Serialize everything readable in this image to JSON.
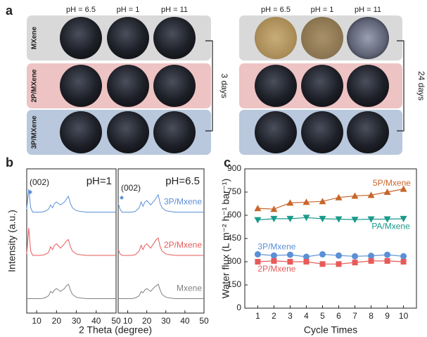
{
  "panel_a": {
    "label": "a",
    "rows": [
      "MXene",
      "2P/MXene",
      "3P/MXene"
    ],
    "groups": [
      {
        "columns": [
          "pH = 6.5",
          "pH = 1",
          "pH = 11"
        ],
        "time": "3 days"
      },
      {
        "columns": [
          "pH = 6.5",
          "pH = 1",
          "pH = 11"
        ],
        "time": "24 days"
      }
    ]
  },
  "chart_data": [
    {
      "type": "line",
      "panel": "b",
      "title": "pH=1",
      "annotation": "(002)",
      "xlabel": "2 Theta (degree)",
      "ylabel": "Intensity (a.u.)",
      "x": [
        5,
        6,
        7,
        8,
        10,
        12,
        14,
        16,
        17,
        18,
        19,
        20,
        22,
        24,
        25,
        26,
        27,
        28,
        30,
        32,
        35,
        40,
        45,
        50
      ],
      "xlim": [
        5,
        50
      ],
      "xticks": [
        10,
        20,
        30,
        40,
        50
      ],
      "ylim": [
        0,
        10
      ],
      "series": [
        {
          "color": "#5b8fd6",
          "values": [
            7.2,
            8.6,
            7.3,
            7.0,
            7.0,
            7.0,
            7.05,
            7.2,
            7.5,
            7.3,
            7.6,
            7.7,
            7.5,
            7.7,
            7.9,
            8.1,
            7.6,
            7.3,
            7.1,
            7.05,
            7.0,
            7.0,
            7.0,
            7.0
          ]
        },
        {
          "color": "#e85a5a",
          "values": [
            4.1,
            5.9,
            4.3,
            4.0,
            4.0,
            4.0,
            4.05,
            4.2,
            4.6,
            4.4,
            4.7,
            4.8,
            4.5,
            4.8,
            5.0,
            5.1,
            4.6,
            4.3,
            4.1,
            4.05,
            4.0,
            4.0,
            4.0,
            4.0
          ]
        },
        {
          "color": "#808080",
          "values": [
            1.0,
            1.0,
            1.0,
            1.0,
            1.0,
            1.0,
            1.05,
            1.2,
            1.5,
            1.4,
            1.6,
            1.7,
            1.5,
            1.7,
            1.9,
            2.0,
            1.6,
            1.3,
            1.1,
            1.05,
            1.0,
            1.0,
            1.0,
            1.0
          ]
        }
      ]
    },
    {
      "type": "line",
      "panel": "b",
      "title": "pH=6.5",
      "annotation": "(002)",
      "x": [
        5,
        6,
        7,
        8,
        10,
        12,
        14,
        16,
        17,
        18,
        19,
        20,
        22,
        24,
        25,
        26,
        27,
        28,
        30,
        32,
        35,
        40,
        45,
        50
      ],
      "xlim": [
        5,
        50
      ],
      "xticks": [
        10,
        20,
        30,
        40,
        50
      ],
      "ylim": [
        0,
        10
      ],
      "series": [
        {
          "name": "3P/Mxene",
          "color": "#5b8fd6",
          "values": [
            7.6,
            7.2,
            7.0,
            7.0,
            7.0,
            7.0,
            7.05,
            7.3,
            7.7,
            7.4,
            7.7,
            7.8,
            7.5,
            7.8,
            8.0,
            8.2,
            7.6,
            7.3,
            7.1,
            7.05,
            7.0,
            7.0,
            7.0,
            7.0
          ]
        },
        {
          "name": "2P/Mxene",
          "color": "#e85a5a",
          "values": [
            4.4,
            4.1,
            4.0,
            4.0,
            4.0,
            4.0,
            4.05,
            4.3,
            4.7,
            4.4,
            4.7,
            4.8,
            4.5,
            4.9,
            5.1,
            5.2,
            4.6,
            4.3,
            4.1,
            4.05,
            4.0,
            4.0,
            4.0,
            4.0
          ]
        },
        {
          "name": "Mxene",
          "color": "#808080",
          "values": [
            1.0,
            1.0,
            1.0,
            1.0,
            1.0,
            1.0,
            1.05,
            1.2,
            1.5,
            1.4,
            1.6,
            1.7,
            1.5,
            1.8,
            1.9,
            2.0,
            1.6,
            1.3,
            1.1,
            1.05,
            1.0,
            1.0,
            1.0,
            1.0
          ]
        }
      ]
    },
    {
      "type": "line",
      "panel": "c",
      "xlabel": "Cycle Times",
      "ylabel": "Water flux (L m⁻² h⁻¹ bar⁻¹)",
      "x": [
        1,
        2,
        3,
        4,
        5,
        6,
        7,
        8,
        9,
        10
      ],
      "xlim": [
        0.2,
        10.8
      ],
      "xticks": [
        1,
        2,
        3,
        4,
        5,
        6,
        7,
        8,
        9,
        10
      ],
      "ylim": [
        0,
        900
      ],
      "yticks": [
        0,
        150,
        300,
        450,
        600,
        750,
        900
      ],
      "series": [
        {
          "name": "5P/Mxene",
          "color": "#c8662a",
          "marker": "triangle-up",
          "values": [
            645,
            640,
            680,
            685,
            690,
            715,
            725,
            730,
            750,
            770
          ]
        },
        {
          "name": "PA/Mxene",
          "color": "#1a9a8a",
          "marker": "triangle-down",
          "values": [
            570,
            578,
            578,
            585,
            578,
            575,
            572,
            575,
            575,
            578
          ]
        },
        {
          "name": "3P/Mxene",
          "color": "#5b8fd6",
          "marker": "circle",
          "values": [
            348,
            340,
            345,
            332,
            348,
            340,
            335,
            338,
            345,
            335
          ]
        },
        {
          "name": "2P/Mxene",
          "color": "#e85a5a",
          "marker": "square",
          "values": [
            300,
            305,
            300,
            300,
            285,
            285,
            295,
            305,
            305,
            300
          ]
        }
      ]
    }
  ]
}
